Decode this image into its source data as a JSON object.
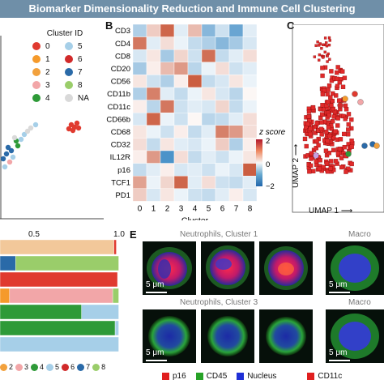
{
  "banner": {
    "title": "Biomarker Dimensionality Reduction and Immune Cell Clustering"
  },
  "panels": {
    "b": "B",
    "c": "C",
    "e": "E"
  },
  "legend": {
    "title": "Cluster ID",
    "items": [
      {
        "label": "0",
        "color": "#e03a2f"
      },
      {
        "label": "5",
        "color": "#a6cfe8"
      },
      {
        "label": "1",
        "color": "#f59a2b"
      },
      {
        "label": "6",
        "color": "#d12a2a"
      },
      {
        "label": "2",
        "color": "#f2a13d"
      },
      {
        "label": "7",
        "color": "#2a6aa8"
      },
      {
        "label": "3",
        "color": "#f2a6a8"
      },
      {
        "label": "8",
        "color": "#9acd6a"
      },
      {
        "label": "4",
        "color": "#2e9a38"
      },
      {
        "label": "NA",
        "color": "#d9d9d9"
      }
    ]
  },
  "heatmap": {
    "markers": [
      "CD3",
      "CD4",
      "CD8",
      "CD20",
      "CD56",
      "CD11b",
      "CD11c",
      "CD66b",
      "CD68",
      "CD32",
      "IL12R",
      "p16",
      "TCF1",
      "PD1"
    ],
    "clusters": [
      "0",
      "1",
      "2",
      "3",
      "4",
      "5",
      "6",
      "7",
      "8"
    ],
    "xlabel": "Cluster",
    "scale_title": "z score",
    "scale_ticks": [
      "2",
      "0",
      "−2"
    ],
    "zscore": [
      [
        -0.8,
        0.6,
        1.8,
        -0.3,
        0.8,
        -1.2,
        -0.5,
        -1.5,
        -0.3
      ],
      [
        1.6,
        -0.3,
        0.4,
        -0.2,
        -0.6,
        -0.8,
        -1.2,
        -0.9,
        -0.4
      ],
      [
        -0.4,
        0.3,
        -0.9,
        0.5,
        -0.5,
        1.7,
        -0.6,
        -0.3,
        0.4
      ],
      [
        -0.9,
        0.2,
        0.8,
        1.2,
        -0.7,
        -0.2,
        0.4,
        -0.5,
        -0.3
      ],
      [
        0.3,
        -0.5,
        -0.8,
        0.2,
        1.9,
        -0.6,
        -0.4,
        0.3,
        -0.2
      ],
      [
        -0.8,
        1.5,
        -0.3,
        -0.6,
        -0.2,
        0.3,
        -0.4,
        -0.7,
        0.1
      ],
      [
        0.2,
        -0.7,
        1.6,
        -0.5,
        -0.3,
        -0.4,
        0.5,
        -0.6,
        -0.2
      ],
      [
        -0.4,
        1.8,
        -0.2,
        -0.5,
        0.1,
        -0.7,
        -0.6,
        -0.3,
        0.4
      ],
      [
        0.3,
        -0.2,
        -0.5,
        0.2,
        -0.6,
        -0.3,
        1.5,
        1.2,
        0.4
      ],
      [
        0.4,
        -0.6,
        0.3,
        -0.3,
        -0.4,
        -0.2,
        0.6,
        -0.8,
        0.2
      ],
      [
        0.2,
        1.2,
        -1.8,
        0.4,
        -0.6,
        -0.3,
        -0.5,
        -0.2,
        0.3
      ],
      [
        -0.6,
        -0.3,
        0.2,
        -0.4,
        -0.3,
        -0.5,
        -0.2,
        -0.4,
        1.9
      ],
      [
        1.1,
        -0.2,
        0.5,
        1.8,
        -0.3,
        0.4,
        -0.5,
        -0.6,
        -0.3
      ],
      [
        0.6,
        -0.4,
        0.3,
        -0.2,
        -0.5,
        -0.6,
        -0.3,
        0.2,
        -0.4
      ]
    ]
  },
  "umap": {
    "xlabel": "UMAP 1",
    "ylabel": "UMAP 2"
  },
  "bars": {
    "tick_labels": [
      "0.5",
      "1.0"
    ],
    "rows": [
      [
        {
          "c": "#f2c89a",
          "v": 0.95
        },
        {
          "c": "#e03a2f",
          "v": 0.02
        }
      ],
      [
        {
          "c": "#2a6aa8",
          "v": 0.13
        },
        {
          "c": "#9acd6a",
          "v": 0.86
        }
      ],
      [
        {
          "c": "#e03a2f",
          "v": 0.98
        }
      ],
      [
        {
          "c": "#f59a2b",
          "v": 0.08
        },
        {
          "c": "#f2a6a8",
          "v": 0.86
        },
        {
          "c": "#9acd6a",
          "v": 0.05
        }
      ],
      [
        {
          "c": "#2e9a38",
          "v": 0.68
        },
        {
          "c": "#a6cfe8",
          "v": 0.31
        }
      ],
      [
        {
          "c": "#2e9a38",
          "v": 0.96
        },
        {
          "c": "#a6cfe8",
          "v": 0.03
        }
      ],
      [
        {
          "c": "#a6cfe8",
          "v": 0.99
        }
      ]
    ],
    "legend": [
      {
        "label": "2",
        "color": "#f2a13d"
      },
      {
        "label": "3",
        "color": "#f2a6a8"
      },
      {
        "label": "4",
        "color": "#2e9a38"
      },
      {
        "label": "5",
        "color": "#a6cfe8"
      },
      {
        "label": "6",
        "color": "#d12a2a"
      },
      {
        "label": "7",
        "color": "#2a6aa8"
      },
      {
        "label": "8",
        "color": "#9acd6a"
      }
    ]
  },
  "micro": {
    "row1_title": "Neutrophils, Cluster 1",
    "row2_title": "Neutrophils, Cluster 3",
    "right_title_1": "Macro",
    "right_title_2": "Macro",
    "scale": "5 μm",
    "legend": [
      {
        "label": "p16",
        "color": "#e01f1f"
      },
      {
        "label": "CD45",
        "color": "#27a227"
      },
      {
        "label": "Nucleus",
        "color": "#1f2fd6"
      },
      {
        "label": "CD11c",
        "color": "#e01f1f"
      }
    ]
  }
}
